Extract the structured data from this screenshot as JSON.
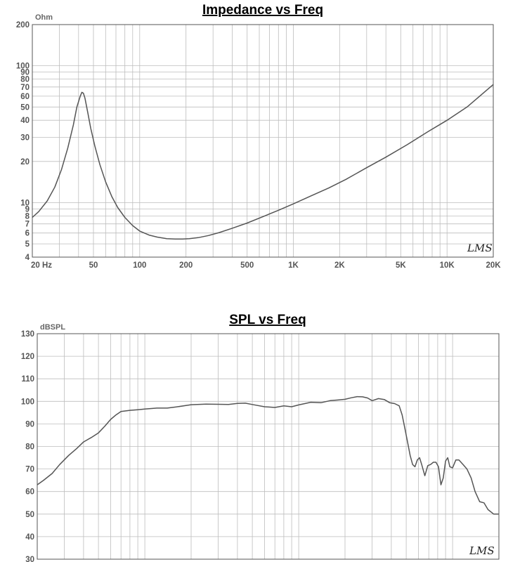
{
  "chart_data": [
    {
      "type": "line",
      "title": "Impedance vs Freq",
      "ylabel": "Ohm",
      "xlabel": "",
      "xscale": "log",
      "yscale": "log",
      "xlim": [
        20,
        20000
      ],
      "ylim": [
        4,
        200
      ],
      "grid": true,
      "logo": "LMS",
      "x_tick_labels": [
        {
          "value": 20,
          "label": "20  Hz"
        },
        {
          "value": 50,
          "label": "50"
        },
        {
          "value": 100,
          "label": "100"
        },
        {
          "value": 200,
          "label": "200"
        },
        {
          "value": 500,
          "label": "500"
        },
        {
          "value": 1000,
          "label": "1K"
        },
        {
          "value": 2000,
          "label": "2K"
        },
        {
          "value": 5000,
          "label": "5K"
        },
        {
          "value": 10000,
          "label": "10K"
        },
        {
          "value": 20000,
          "label": "20K"
        }
      ],
      "y_tick_labels": [
        {
          "value": 4,
          "label": "4"
        },
        {
          "value": 5,
          "label": "5"
        },
        {
          "value": 6,
          "label": "6"
        },
        {
          "value": 7,
          "label": "7"
        },
        {
          "value": 8,
          "label": "8"
        },
        {
          "value": 9,
          "label": "9"
        },
        {
          "value": 10,
          "label": "10"
        },
        {
          "value": 20,
          "label": "20"
        },
        {
          "value": 30,
          "label": "30"
        },
        {
          "value": 40,
          "label": "40"
        },
        {
          "value": 50,
          "label": "50"
        },
        {
          "value": 60,
          "label": "60"
        },
        {
          "value": 70,
          "label": "70"
        },
        {
          "value": 80,
          "label": "80"
        },
        {
          "value": 90,
          "label": "90"
        },
        {
          "value": 100,
          "label": "100"
        },
        {
          "value": 200,
          "label": "200"
        }
      ],
      "series": [
        {
          "x": [
            20,
            22,
            25,
            28,
            31,
            34,
            37,
            39,
            41,
            42,
            43,
            44,
            46,
            48,
            51,
            55,
            60,
            66,
            72,
            80,
            90,
            100,
            115,
            130,
            150,
            170,
            190,
            210,
            240,
            280,
            330,
            400,
            500,
            650,
            800,
            1000,
            1300,
            1700,
            2200,
            3000,
            4000,
            5500,
            7500,
            10000,
            13500,
            20000
          ],
          "y": [
            7.8,
            8.6,
            10.3,
            13,
            17.5,
            25,
            37,
            50,
            60,
            64,
            63,
            58,
            45,
            35,
            26,
            19,
            14.2,
            11,
            9.2,
            7.8,
            6.8,
            6.2,
            5.8,
            5.6,
            5.45,
            5.42,
            5.42,
            5.45,
            5.55,
            5.75,
            6.05,
            6.5,
            7.1,
            8,
            8.8,
            9.8,
            11.2,
            12.8,
            14.8,
            18,
            21.5,
            26.5,
            33,
            40,
            50,
            73
          ]
        }
      ]
    },
    {
      "type": "line",
      "title": "SPL vs Freq",
      "ylabel": "dBSPL",
      "xlabel": "",
      "xscale": "log",
      "xlim": [
        20,
        20000
      ],
      "ylim": [
        30,
        130
      ],
      "grid": true,
      "logo": "LMS",
      "y_tick_labels": [
        {
          "value": 30,
          "label": "30"
        },
        {
          "value": 40,
          "label": "40"
        },
        {
          "value": 50,
          "label": "50"
        },
        {
          "value": 60,
          "label": "60"
        },
        {
          "value": 70,
          "label": "70"
        },
        {
          "value": 80,
          "label": "80"
        },
        {
          "value": 90,
          "label": "90"
        },
        {
          "value": 100,
          "label": "100"
        },
        {
          "value": 110,
          "label": "110"
        },
        {
          "value": 120,
          "label": "120"
        },
        {
          "value": 130,
          "label": "130"
        }
      ],
      "series": [
        {
          "x": [
            20,
            22,
            25,
            28,
            32,
            36,
            40,
            45,
            50,
            55,
            60,
            65,
            70,
            80,
            90,
            100,
            120,
            140,
            160,
            200,
            250,
            300,
            350,
            400,
            450,
            500,
            600,
            700,
            800,
            900,
            1000,
            1200,
            1400,
            1600,
            1800,
            2000,
            2200,
            2400,
            2600,
            2800,
            3000,
            3300,
            3600,
            3900,
            4200,
            4500,
            4700,
            4900,
            5100,
            5300,
            5500,
            5700,
            5900,
            6100,
            6300,
            6600,
            6900,
            7200,
            7500,
            7800,
            8100,
            8400,
            8700,
            9000,
            9300,
            9600,
            10000,
            10500,
            11000,
            11700,
            12400,
            13200,
            14000,
            15000,
            16000,
            17000,
            18500,
            20000
          ],
          "y": [
            63,
            65,
            68,
            72,
            76,
            79,
            82,
            84,
            86,
            89,
            92,
            94,
            95.5,
            96,
            96.3,
            96.6,
            97,
            97,
            97.5,
            98.5,
            98.8,
            98.7,
            98.6,
            99.1,
            99.2,
            98.6,
            97.6,
            97.3,
            98,
            97.6,
            98.4,
            99.6,
            99.4,
            100.3,
            100.6,
            100.9,
            101.6,
            102.1,
            102,
            101.5,
            100.3,
            101.2,
            100.8,
            99.4,
            99,
            98,
            94,
            88,
            82,
            76,
            72,
            71,
            74,
            75,
            72,
            67,
            71.5,
            72,
            73,
            73,
            71,
            63,
            66,
            73.5,
            75,
            71,
            70.5,
            74,
            74,
            72,
            70,
            66,
            60,
            55.5,
            55,
            52,
            50,
            50
          ]
        }
      ]
    }
  ]
}
